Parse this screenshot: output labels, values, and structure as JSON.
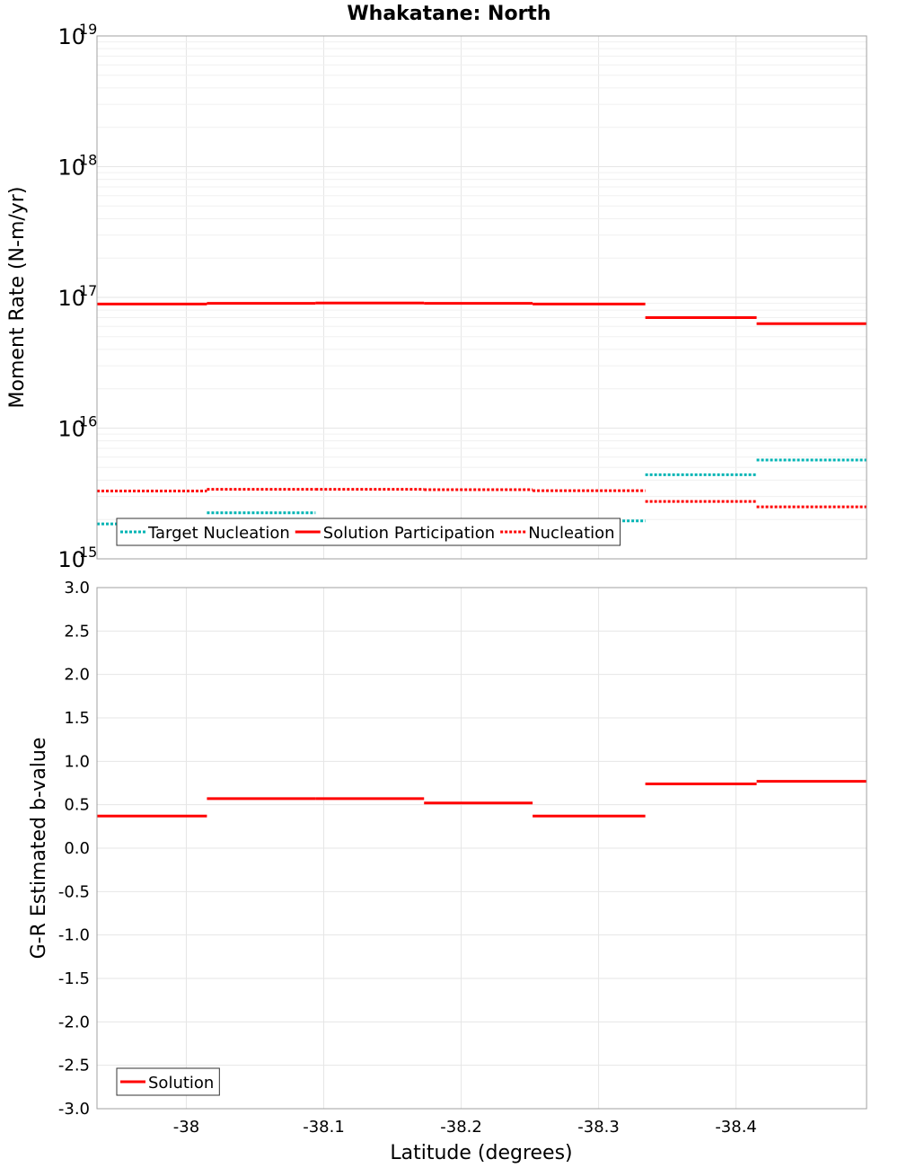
{
  "chart_data": [
    {
      "type": "line",
      "title": "Whakatane: North",
      "ylabel": "Moment Rate (N-m/yr)",
      "yscale": "log",
      "ylim": [
        1000000000000000.0,
        1e+19
      ],
      "yticks": [
        {
          "base": "10",
          "exp": "15"
        },
        {
          "base": "10",
          "exp": "16"
        },
        {
          "base": "10",
          "exp": "17"
        },
        {
          "base": "10",
          "exp": "18"
        },
        {
          "base": "10",
          "exp": "19"
        }
      ],
      "xlim": [
        -37.935,
        -38.495
      ],
      "series": [
        {
          "name": "Target Nucleation",
          "color": "#00b4b4",
          "style": "dotted",
          "steps": [
            {
              "x0": -37.935,
              "x1": -38.015,
              "y": 1850000000000000.0
            },
            {
              "x0": -38.015,
              "x1": -38.094,
              "y": 2250000000000000.0
            },
            {
              "x0": -38.094,
              "x1": -38.173,
              "y": 1650000000000000.0
            },
            {
              "x0": -38.173,
              "x1": -38.252,
              "y": 1700000000000000.0
            },
            {
              "x0": -38.252,
              "x1": -38.334,
              "y": 1950000000000000.0
            },
            {
              "x0": -38.334,
              "x1": -38.415,
              "y": 4400000000000000.0
            },
            {
              "x0": -38.415,
              "x1": -38.495,
              "y": 5700000000000000.0
            }
          ]
        },
        {
          "name": "Solution Participation",
          "color": "#ff0000",
          "style": "solid",
          "steps": [
            {
              "x0": -37.935,
              "x1": -38.015,
              "y": 8.9e+16
            },
            {
              "x0": -38.015,
              "x1": -38.094,
              "y": 9e+16
            },
            {
              "x0": -38.094,
              "x1": -38.173,
              "y": 9.05e+16
            },
            {
              "x0": -38.173,
              "x1": -38.252,
              "y": 9e+16
            },
            {
              "x0": -38.252,
              "x1": -38.334,
              "y": 8.9e+16
            },
            {
              "x0": -38.334,
              "x1": -38.415,
              "y": 7e+16
            },
            {
              "x0": -38.415,
              "x1": -38.495,
              "y": 6.3e+16
            }
          ]
        },
        {
          "name": "Nucleation",
          "color": "#ff0000",
          "style": "dotted",
          "steps": [
            {
              "x0": -37.935,
              "x1": -38.015,
              "y": 3300000000000000.0
            },
            {
              "x0": -38.015,
              "x1": -38.094,
              "y": 3400000000000000.0
            },
            {
              "x0": -38.094,
              "x1": -38.173,
              "y": 3400000000000000.0
            },
            {
              "x0": -38.173,
              "x1": -38.252,
              "y": 3380000000000000.0
            },
            {
              "x0": -38.252,
              "x1": -38.334,
              "y": 3320000000000000.0
            },
            {
              "x0": -38.334,
              "x1": -38.415,
              "y": 2750000000000000.0
            },
            {
              "x0": -38.415,
              "x1": -38.495,
              "y": 2500000000000000.0
            }
          ]
        }
      ],
      "legend": "bottom-left"
    },
    {
      "type": "line",
      "xlabel": "Latitude (degrees)",
      "ylabel": "G-R Estimated b-value",
      "ylim": [
        -3.0,
        3.0
      ],
      "yticks": [
        "3.0",
        "2.5",
        "2.0",
        "1.5",
        "1.0",
        "0.5",
        "0.0",
        "-0.5",
        "-1.0",
        "-1.5",
        "-2.0",
        "-2.5",
        "-3.0"
      ],
      "xlim": [
        -37.935,
        -38.495
      ],
      "xticks": [
        "-38",
        "-38.1",
        "-38.2",
        "-38.3",
        "-38.4"
      ],
      "series": [
        {
          "name": "Solution",
          "color": "#ff0000",
          "style": "solid",
          "steps": [
            {
              "x0": -37.935,
              "x1": -38.015,
              "y": 0.37
            },
            {
              "x0": -38.015,
              "x1": -38.094,
              "y": 0.57
            },
            {
              "x0": -38.094,
              "x1": -38.173,
              "y": 0.57
            },
            {
              "x0": -38.173,
              "x1": -38.252,
              "y": 0.52
            },
            {
              "x0": -38.252,
              "x1": -38.334,
              "y": 0.37
            },
            {
              "x0": -38.334,
              "x1": -38.415,
              "y": 0.74
            },
            {
              "x0": -38.415,
              "x1": -38.495,
              "y": 0.77
            }
          ]
        }
      ],
      "legend": "bottom-left"
    }
  ]
}
